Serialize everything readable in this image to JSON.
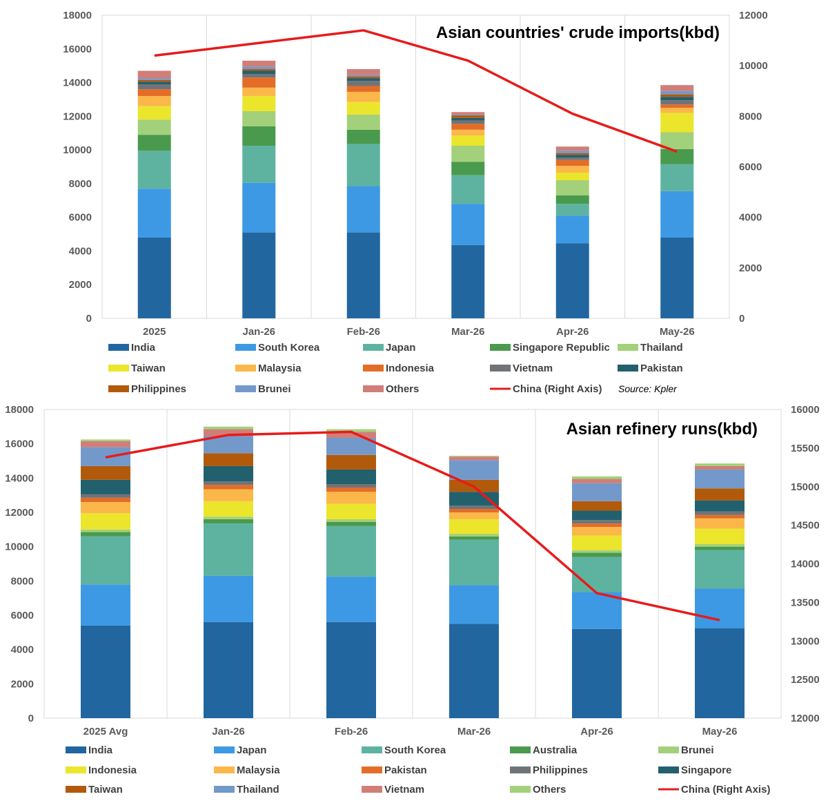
{
  "chart_data": [
    {
      "type": "bar",
      "stacked": true,
      "title": "Asian countries' crude imports(kbd)",
      "source": "Source: Kpler",
      "categories": [
        "2025",
        "Jan-26",
        "Feb-26",
        "Mar-26",
        "Apr-26",
        "May-26"
      ],
      "ylim": [
        0,
        18000
      ],
      "yticks": [
        0,
        2000,
        4000,
        6000,
        8000,
        10000,
        12000,
        14000,
        16000,
        18000
      ],
      "y2lim": [
        0,
        12000
      ],
      "y2ticks": [
        0,
        2000,
        4000,
        6000,
        8000,
        10000,
        12000
      ],
      "grid": "vertical",
      "legend_position": "bottom",
      "series": [
        {
          "name": "India",
          "color": "#2266A0",
          "values": [
            4800,
            5100,
            5100,
            4350,
            4450,
            4800
          ]
        },
        {
          "name": "South Korea",
          "color": "#3D99E3",
          "values": [
            2900,
            2950,
            2750,
            2450,
            1650,
            2750
          ]
        },
        {
          "name": "Japan",
          "color": "#5EB3A0",
          "values": [
            2250,
            2200,
            2500,
            1700,
            700,
            1600
          ]
        },
        {
          "name": "Singapore Republic",
          "color": "#4A9A4E",
          "values": [
            950,
            1150,
            850,
            800,
            500,
            900
          ]
        },
        {
          "name": "Thailand",
          "color": "#A3D07A",
          "values": [
            900,
            900,
            900,
            950,
            900,
            1000
          ]
        },
        {
          "name": "Taiwan",
          "color": "#EBE52C",
          "values": [
            800,
            900,
            750,
            600,
            450,
            1150
          ]
        },
        {
          "name": "Malaysia",
          "color": "#FBB74A",
          "values": [
            600,
            500,
            600,
            350,
            400,
            300
          ]
        },
        {
          "name": "Indonesia",
          "color": "#E36D26",
          "values": [
            400,
            600,
            350,
            350,
            350,
            200
          ]
        },
        {
          "name": "Vietnam",
          "color": "#707378",
          "values": [
            300,
            200,
            300,
            200,
            150,
            250
          ]
        },
        {
          "name": "Pakistan",
          "color": "#22606E",
          "values": [
            150,
            200,
            150,
            150,
            150,
            200
          ]
        },
        {
          "name": "Philippines",
          "color": "#B25A0C",
          "values": [
            100,
            100,
            100,
            150,
            100,
            150
          ]
        },
        {
          "name": "Brunei",
          "color": "#7399CB",
          "values": [
            100,
            150,
            100,
            50,
            150,
            200
          ]
        },
        {
          "name": "Others",
          "color": "#D17E78",
          "values": [
            450,
            350,
            350,
            150,
            250,
            350
          ]
        }
      ],
      "line": {
        "name": "China (Right Axis)",
        "color": "#E81A1A",
        "axis": "right",
        "values": [
          10400,
          10900,
          11400,
          10200,
          8100,
          6600
        ]
      }
    },
    {
      "type": "bar",
      "stacked": true,
      "title": "Asian refinery runs(kbd)",
      "categories": [
        "2025 Avg",
        "Jan-26",
        "Feb-26",
        "Mar-26",
        "Apr-26",
        "May-26"
      ],
      "ylim": [
        0,
        18000
      ],
      "yticks": [
        0,
        2000,
        4000,
        6000,
        8000,
        10000,
        12000,
        14000,
        16000,
        18000
      ],
      "y2lim": [
        12000,
        16000
      ],
      "y2ticks": [
        12000,
        12500,
        13000,
        13500,
        14000,
        14500,
        15000,
        15500,
        16000
      ],
      "grid": "vertical",
      "legend_position": "bottom",
      "series": [
        {
          "name": "India",
          "color": "#2266A0",
          "values": [
            5400,
            5600,
            5600,
            5500,
            5200,
            5250
          ]
        },
        {
          "name": "Japan",
          "color": "#3D99E3",
          "values": [
            2400,
            2700,
            2650,
            2250,
            2150,
            2300
          ]
        },
        {
          "name": "South Korea",
          "color": "#5EB3A0",
          "values": [
            2800,
            3050,
            2950,
            2650,
            2050,
            2250
          ]
        },
        {
          "name": "Australia",
          "color": "#4A9A4E",
          "values": [
            250,
            250,
            250,
            200,
            250,
            200
          ]
        },
        {
          "name": "Brunei",
          "color": "#A3D07A",
          "values": [
            150,
            150,
            150,
            150,
            150,
            150
          ]
        },
        {
          "name": "Indonesia",
          "color": "#EBE52C",
          "values": [
            950,
            900,
            900,
            850,
            850,
            900
          ]
        },
        {
          "name": "Malaysia",
          "color": "#FBB74A",
          "values": [
            650,
            700,
            700,
            400,
            500,
            600
          ]
        },
        {
          "name": "Pakistan",
          "color": "#E36D26",
          "values": [
            250,
            250,
            250,
            200,
            200,
            200
          ]
        },
        {
          "name": "Philippines",
          "color": "#707378",
          "values": [
            200,
            200,
            200,
            200,
            200,
            200
          ]
        },
        {
          "name": "Singapore",
          "color": "#22606E",
          "values": [
            850,
            900,
            850,
            800,
            550,
            650
          ]
        },
        {
          "name": "Taiwan",
          "color": "#B25A0C",
          "values": [
            800,
            750,
            850,
            700,
            550,
            700
          ]
        },
        {
          "name": "Thailand",
          "color": "#7399CB",
          "values": [
            1100,
            1000,
            1000,
            1150,
            1050,
            1100
          ]
        },
        {
          "name": "Vietnam",
          "color": "#D17E78",
          "values": [
            350,
            400,
            350,
            200,
            250,
            200
          ]
        },
        {
          "name": "Others",
          "color": "#A3D07A",
          "values": [
            100,
            150,
            150,
            50,
            150,
            150
          ]
        }
      ],
      "line": {
        "name": "China (Right Axis)",
        "color": "#E81A1A",
        "axis": "right",
        "values": [
          15380,
          15670,
          15710,
          15000,
          13620,
          13270
        ]
      }
    }
  ]
}
